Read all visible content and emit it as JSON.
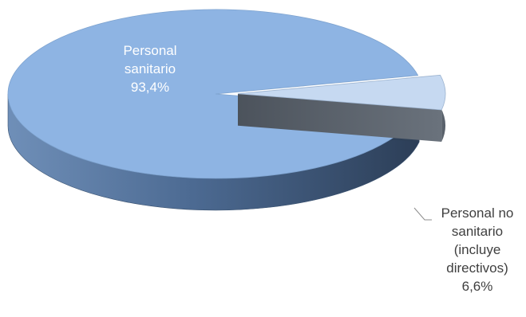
{
  "chart_data": {
    "type": "pie",
    "style": "3d-exploded",
    "slices": [
      {
        "label_lines": [
          "Personal",
          "sanitario"
        ],
        "value": 93.4,
        "value_label": "93,4%",
        "color": "#8eb4e3"
      },
      {
        "label_lines": [
          "Personal no",
          "sanitario",
          "(incluye",
          "directivos)"
        ],
        "value": 6.6,
        "value_label": "6,6%",
        "color": "#c6d9f1"
      }
    ],
    "legend": "none",
    "title": ""
  }
}
